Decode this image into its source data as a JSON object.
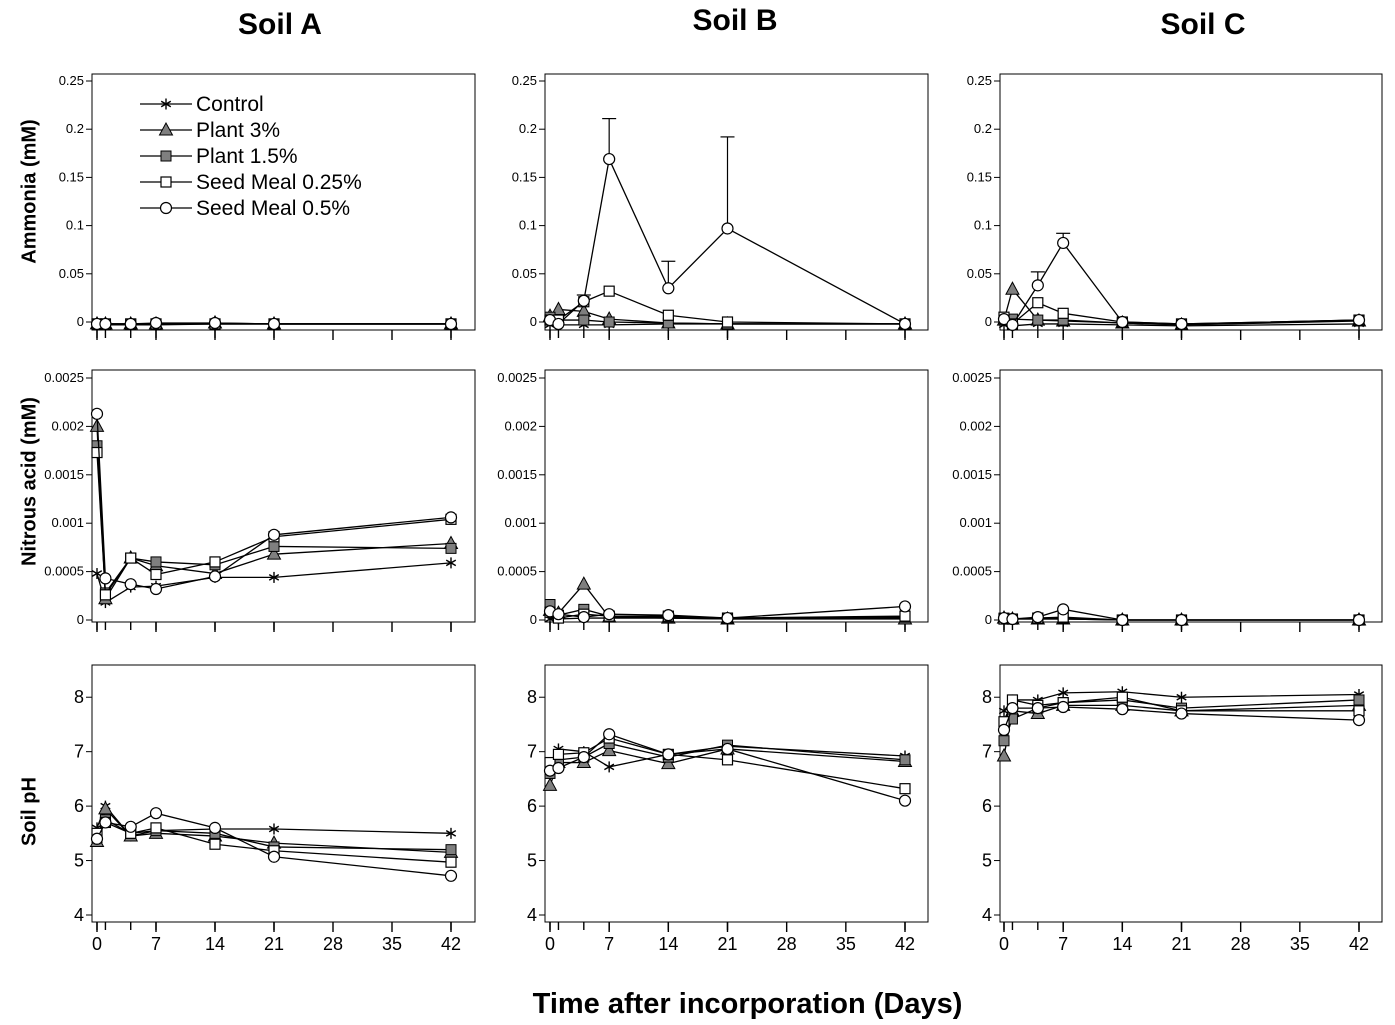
{
  "headers": {
    "soil_a": "Soil A",
    "soil_b": "Soil B",
    "soil_c": "Soil C"
  },
  "row_labels": {
    "ammonia": "Ammonia (mM)",
    "nitrous": "Nitrous acid (mM)",
    "ph": "Soil pH"
  },
  "x_title": "Time after incorporation (Days)",
  "legend": [
    "Control",
    "Plant 3%",
    "Plant 1.5%",
    "Seed Meal 0.25%",
    "Seed Meal 0.5%"
  ],
  "chart_data": [
    {
      "type": "line",
      "soil": "Soil A",
      "variable": "Ammonia (mM)",
      "x": [
        0,
        1,
        4,
        7,
        14,
        21,
        42
      ],
      "xticks": [
        0,
        7,
        14,
        21,
        28,
        35,
        42
      ],
      "xlim": [
        0,
        42
      ],
      "ylim": [
        0,
        0.25
      ],
      "yticks": [
        0,
        0.05,
        0.1,
        0.15,
        0.2,
        0.25
      ],
      "series": [
        {
          "name": "Control",
          "values": [
            -0.002,
            -0.003,
            -0.003,
            -0.003,
            -0.002,
            -0.002,
            -0.002
          ]
        },
        {
          "name": "Plant 3%",
          "values": [
            -0.002,
            -0.002,
            -0.002,
            -0.002,
            -0.001,
            -0.002,
            -0.002
          ]
        },
        {
          "name": "Plant 1.5%",
          "values": [
            -0.002,
            -0.002,
            -0.002,
            -0.002,
            -0.002,
            -0.002,
            -0.002
          ]
        },
        {
          "name": "Seed Meal 0.25%",
          "values": [
            -0.002,
            -0.002,
            -0.002,
            -0.002,
            -0.002,
            -0.002,
            -0.002
          ]
        },
        {
          "name": "Seed Meal 0.5%",
          "values": [
            -0.002,
            -0.002,
            -0.002,
            -0.001,
            -0.001,
            -0.002,
            -0.002
          ]
        }
      ]
    },
    {
      "type": "line",
      "soil": "Soil B",
      "variable": "Ammonia (mM)",
      "x": [
        0,
        1,
        4,
        7,
        14,
        21,
        42
      ],
      "xticks": [
        0,
        7,
        14,
        21,
        28,
        35,
        42
      ],
      "xlim": [
        0,
        42
      ],
      "ylim": [
        0,
        0.25
      ],
      "yticks": [
        0,
        0.05,
        0.1,
        0.15,
        0.2,
        0.25
      ],
      "series": [
        {
          "name": "Control",
          "values": [
            -0.003,
            -0.003,
            -0.003,
            -0.003,
            -0.002,
            -0.002,
            -0.002
          ]
        },
        {
          "name": "Plant 3%",
          "values": [
            0.006,
            0.013,
            0.011,
            0.003,
            -0.001,
            -0.002,
            -0.002
          ]
        },
        {
          "name": "Plant 1.5%",
          "values": [
            0.005,
            0.002,
            0.002,
            0.0,
            -0.001,
            -0.002,
            -0.002
          ]
        },
        {
          "name": "Seed Meal 0.25%",
          "values": [
            0.002,
            0.002,
            0.021,
            0.032,
            0.007,
            0.0,
            -0.002
          ]
        },
        {
          "name": "Seed Meal 0.5%",
          "values": [
            0.002,
            -0.002,
            0.022,
            0.169,
            0.035,
            0.097,
            -0.002
          ],
          "error_up": [
            0,
            0,
            0.006,
            0.042,
            0.028,
            0.095,
            0
          ]
        }
      ]
    },
    {
      "type": "line",
      "soil": "Soil C",
      "variable": "Ammonia (mM)",
      "x": [
        0,
        1,
        4,
        7,
        14,
        21,
        42
      ],
      "xticks": [
        0,
        7,
        14,
        21,
        28,
        35,
        42
      ],
      "xlim": [
        0,
        42
      ],
      "ylim": [
        0,
        0.25
      ],
      "yticks": [
        0,
        0.05,
        0.1,
        0.15,
        0.2,
        0.25
      ],
      "series": [
        {
          "name": "Control",
          "values": [
            -0.003,
            -0.004,
            -0.002,
            -0.002,
            -0.003,
            -0.004,
            -0.002
          ]
        },
        {
          "name": "Plant 3%",
          "values": [
            0.002,
            0.034,
            0.002,
            0.001,
            -0.001,
            -0.003,
            0.001
          ]
        },
        {
          "name": "Plant 1.5%",
          "values": [
            0.003,
            0.003,
            0.002,
            0.002,
            -0.001,
            -0.003,
            0.002
          ]
        },
        {
          "name": "Seed Meal 0.25%",
          "values": [
            0.005,
            -0.002,
            0.02,
            0.009,
            0.0,
            -0.002,
            0.002
          ]
        },
        {
          "name": "Seed Meal 0.5%",
          "values": [
            0.003,
            -0.003,
            0.038,
            0.082,
            0.0,
            -0.002,
            0.002
          ],
          "error_up": [
            0,
            0,
            0.014,
            0.01,
            0,
            0,
            0
          ]
        }
      ]
    },
    {
      "type": "line",
      "soil": "Soil A",
      "variable": "Nitrous acid (mM)",
      "x": [
        0,
        1,
        4,
        7,
        14,
        21,
        42
      ],
      "xticks": [
        0,
        7,
        14,
        21,
        28,
        35,
        42
      ],
      "xlim": [
        0,
        42
      ],
      "ylim": [
        0,
        0.0025
      ],
      "yticks": [
        0,
        0.0005,
        0.001,
        0.0015,
        0.002,
        0.0025
      ],
      "series": [
        {
          "name": "Control",
          "values": [
            0.00048,
            0.00018,
            0.00034,
            0.00035,
            0.00044,
            0.00044,
            0.00059
          ]
        },
        {
          "name": "Plant 3%",
          "values": [
            0.002,
            0.00022,
            0.00064,
            0.00056,
            0.00048,
            0.00068,
            0.00079
          ]
        },
        {
          "name": "Plant 1.5%",
          "values": [
            0.0018,
            0.00028,
            0.00064,
            0.0006,
            0.00057,
            0.00076,
            0.00074
          ]
        },
        {
          "name": "Seed Meal 0.25%",
          "values": [
            0.00173,
            0.00026,
            0.00064,
            0.00047,
            0.0006,
            0.00086,
            0.00104
          ]
        },
        {
          "name": "Seed Meal 0.5%",
          "values": [
            0.00213,
            0.00043,
            0.00037,
            0.00032,
            0.00045,
            0.00088,
            0.00106
          ]
        }
      ]
    },
    {
      "type": "line",
      "soil": "Soil B",
      "variable": "Nitrous acid (mM)",
      "x": [
        0,
        1,
        4,
        7,
        14,
        21,
        42
      ],
      "xticks": [
        0,
        7,
        14,
        21,
        28,
        35,
        42
      ],
      "xlim": [
        0,
        42
      ],
      "ylim": [
        0,
        0.0025
      ],
      "yticks": [
        0,
        0.0005,
        0.001,
        0.0015,
        0.002,
        0.0025
      ],
      "series": [
        {
          "name": "Control",
          "values": [
            1e-05,
            1e-05,
            2e-05,
            2e-05,
            2e-05,
            1e-05,
            2e-05
          ]
        },
        {
          "name": "Plant 3%",
          "values": [
            0.0001,
            7e-05,
            0.00037,
            3e-05,
            2e-05,
            1e-05,
            1e-05
          ]
        },
        {
          "name": "Plant 1.5%",
          "values": [
            0.00016,
            5e-05,
            0.00011,
            4e-05,
            3e-05,
            2e-05,
            3e-05
          ]
        },
        {
          "name": "Seed Meal 0.25%",
          "values": [
            8e-05,
            2e-05,
            6e-05,
            4e-05,
            4e-05,
            2e-05,
            4e-05
          ]
        },
        {
          "name": "Seed Meal 0.5%",
          "values": [
            9e-05,
            6e-05,
            3e-05,
            6e-05,
            5e-05,
            2e-05,
            0.00014
          ]
        }
      ]
    },
    {
      "type": "line",
      "soil": "Soil C",
      "variable": "Nitrous acid (mM)",
      "x": [
        0,
        1,
        4,
        7,
        14,
        21,
        42
      ],
      "xticks": [
        0,
        7,
        14,
        21,
        28,
        35,
        42
      ],
      "xlim": [
        0,
        42
      ],
      "ylim": [
        0,
        0.0025
      ],
      "yticks": [
        0,
        0.0005,
        0.001,
        0.0015,
        0.002,
        0.0025
      ],
      "series": [
        {
          "name": "Control",
          "values": [
            1e-05,
            1e-05,
            1e-05,
            1e-05,
            0.0,
            0.0,
            0.0
          ]
        },
        {
          "name": "Plant 3%",
          "values": [
            2e-05,
            1e-05,
            1e-05,
            1e-05,
            0.0,
            0.0,
            0.0
          ]
        },
        {
          "name": "Plant 1.5%",
          "values": [
            2e-05,
            1e-05,
            2e-05,
            2e-05,
            0.0,
            0.0,
            0.0
          ]
        },
        {
          "name": "Seed Meal 0.25%",
          "values": [
            1e-05,
            1e-05,
            2e-05,
            3e-05,
            0.0,
            0.0,
            0.0
          ]
        },
        {
          "name": "Seed Meal 0.5%",
          "values": [
            2e-05,
            1e-05,
            3e-05,
            0.00011,
            0.0,
            0.0,
            0.0
          ]
        }
      ]
    },
    {
      "type": "line",
      "soil": "Soil A",
      "variable": "Soil pH",
      "x": [
        0,
        1,
        4,
        7,
        14,
        21,
        42
      ],
      "xticks": [
        0,
        7,
        14,
        21,
        28,
        35,
        42
      ],
      "xlim": [
        0,
        42
      ],
      "ylim": [
        4,
        8.5
      ],
      "yticks": [
        4,
        5,
        6,
        7,
        8
      ],
      "series": [
        {
          "name": "Control",
          "values": [
            5.6,
            6.0,
            5.45,
            5.55,
            5.58,
            5.58,
            5.5
          ]
        },
        {
          "name": "Plant 3%",
          "values": [
            5.35,
            5.95,
            5.45,
            5.5,
            5.45,
            5.32,
            5.15
          ]
        },
        {
          "name": "Plant 1.5%",
          "values": [
            5.42,
            5.75,
            5.5,
            5.55,
            5.5,
            5.25,
            5.2
          ]
        },
        {
          "name": "Seed Meal 0.25%",
          "values": [
            5.5,
            5.7,
            5.5,
            5.6,
            5.3,
            5.18,
            4.97
          ]
        },
        {
          "name": "Seed Meal 0.5%",
          "values": [
            5.4,
            5.7,
            5.62,
            5.87,
            5.6,
            5.07,
            4.72
          ]
        }
      ]
    },
    {
      "type": "line",
      "soil": "Soil B",
      "variable": "Soil pH",
      "x": [
        0,
        1,
        4,
        7,
        14,
        21,
        42
      ],
      "xticks": [
        0,
        7,
        14,
        21,
        28,
        35,
        42
      ],
      "xlim": [
        0,
        42
      ],
      "ylim": [
        4,
        8.5
      ],
      "yticks": [
        4,
        5,
        6,
        7,
        8
      ],
      "series": [
        {
          "name": "Control",
          "values": [
            6.75,
            7.05,
            7.0,
            6.72,
            6.95,
            7.1,
            6.92
          ]
        },
        {
          "name": "Plant 3%",
          "values": [
            6.38,
            6.8,
            6.8,
            7.02,
            6.78,
            7.05,
            6.82
          ]
        },
        {
          "name": "Plant 1.5%",
          "values": [
            6.6,
            6.85,
            6.9,
            7.15,
            6.9,
            7.12,
            6.85
          ]
        },
        {
          "name": "Seed Meal 0.25%",
          "values": [
            6.8,
            6.95,
            6.98,
            7.25,
            6.95,
            6.85,
            6.32
          ]
        },
        {
          "name": "Seed Meal 0.5%",
          "values": [
            6.65,
            6.7,
            6.9,
            7.32,
            6.95,
            7.05,
            6.1
          ]
        }
      ]
    },
    {
      "type": "line",
      "soil": "Soil C",
      "variable": "Soil pH",
      "x": [
        0,
        1,
        4,
        7,
        14,
        21,
        42
      ],
      "xticks": [
        0,
        7,
        14,
        21,
        28,
        35,
        42
      ],
      "xlim": [
        0,
        42
      ],
      "ylim": [
        4,
        8.5
      ],
      "yticks": [
        4,
        5,
        6,
        7,
        8
      ],
      "series": [
        {
          "name": "Control",
          "values": [
            7.75,
            7.95,
            7.95,
            8.08,
            8.1,
            8.0,
            8.05
          ]
        },
        {
          "name": "Plant 3%",
          "values": [
            6.92,
            7.75,
            7.7,
            7.85,
            7.85,
            7.75,
            7.85
          ]
        },
        {
          "name": "Plant 1.5%",
          "values": [
            7.2,
            7.6,
            7.8,
            7.9,
            7.95,
            7.8,
            7.95
          ]
        },
        {
          "name": "Seed Meal 0.25%",
          "values": [
            7.55,
            7.95,
            7.85,
            7.9,
            8.0,
            7.75,
            7.75
          ]
        },
        {
          "name": "Seed Meal 0.5%",
          "values": [
            7.4,
            7.8,
            7.8,
            7.82,
            7.78,
            7.7,
            7.58
          ]
        }
      ]
    }
  ]
}
